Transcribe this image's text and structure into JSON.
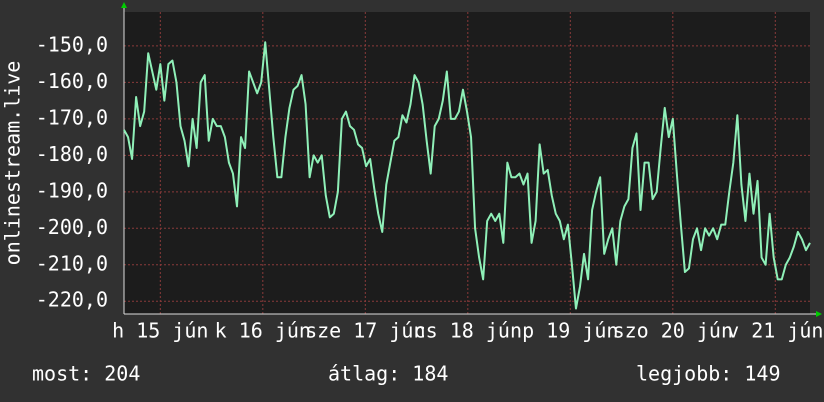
{
  "chart_data": {
    "type": "line",
    "y_label": "onlinestream.live",
    "series": [
      {
        "color": "#8ff0b8",
        "values": [
          -173,
          -175,
          -181,
          -164,
          -172,
          -168,
          -152,
          -157,
          -162,
          -155,
          -165,
          -155,
          -154,
          -160,
          -172,
          -176,
          -183,
          -170,
          -178,
          -160,
          -158,
          -176,
          -170,
          -172,
          -172,
          -175,
          -182,
          -185,
          -194,
          -175,
          -178,
          -157,
          -160,
          -163,
          -160,
          -149,
          -162,
          -175,
          -186,
          -186,
          -175,
          -167,
          -162,
          -161,
          -158,
          -166,
          -186,
          -180,
          -182,
          -180,
          -191,
          -197,
          -196,
          -190,
          -170,
          -168,
          -172,
          -173,
          -177,
          -178,
          -183,
          -181,
          -189,
          -196,
          -201,
          -188,
          -182,
          -176,
          -175,
          -169,
          -171,
          -166,
          -158,
          -160,
          -166,
          -176,
          -185,
          -172,
          -170,
          -165,
          -157,
          -170,
          -170,
          -168,
          -162,
          -168,
          -175,
          -200,
          -208,
          -214,
          -198,
          -196,
          -198,
          -196,
          -204,
          -182,
          -186,
          -186,
          -185,
          -188,
          -185,
          -204,
          -198,
          -177,
          -185,
          -184,
          -191,
          -196,
          -198,
          -203,
          -199,
          -210,
          -222,
          -216,
          -207,
          -214,
          -195,
          -190,
          -186,
          -207,
          -203,
          -200,
          -210,
          -198,
          -194,
          -192,
          -178,
          -174,
          -195,
          -182,
          -182,
          -192,
          -190,
          -178,
          -167,
          -175,
          -170,
          -185,
          -199,
          -212,
          -211,
          -203,
          -200,
          -206,
          -200,
          -202,
          -200,
          -203,
          -199,
          -199,
          -190,
          -182,
          -169,
          -188,
          -198,
          -185,
          -196,
          -187,
          -208,
          -210,
          -196,
          -208,
          -214,
          -214,
          -210,
          -208,
          -205,
          -201,
          -203,
          -206,
          -204
        ]
      }
    ],
    "xlim": [
      0,
      170
    ],
    "xticks": [
      {
        "value": 9,
        "label": "h 15 jún"
      },
      {
        "value": 34.4,
        "label": "k 16 jún"
      },
      {
        "value": 59.8,
        "label": "sze 17 jún"
      },
      {
        "value": 85.2,
        "label": "cs 18 jún"
      },
      {
        "value": 110.6,
        "label": "p 19 jún"
      },
      {
        "value": 136,
        "label": "szo 20 jún"
      },
      {
        "value": 161.4,
        "label": "v 21 jún"
      }
    ],
    "ylim": [
      -223.5,
      -140.7
    ],
    "yticks": [
      {
        "value": -150,
        "label": "-150,0"
      },
      {
        "value": -160,
        "label": "-160,0"
      },
      {
        "value": -170,
        "label": "-170,0"
      },
      {
        "value": -180,
        "label": "-180,0"
      },
      {
        "value": -190,
        "label": "-190,0"
      },
      {
        "value": -200,
        "label": "-200,0"
      },
      {
        "value": -210,
        "label": "-210,0"
      },
      {
        "value": -220,
        "label": "-220,0"
      }
    ],
    "grid": true,
    "stats": [
      "most: 204",
      "átlag: 184",
      "legjobb: 149"
    ]
  }
}
